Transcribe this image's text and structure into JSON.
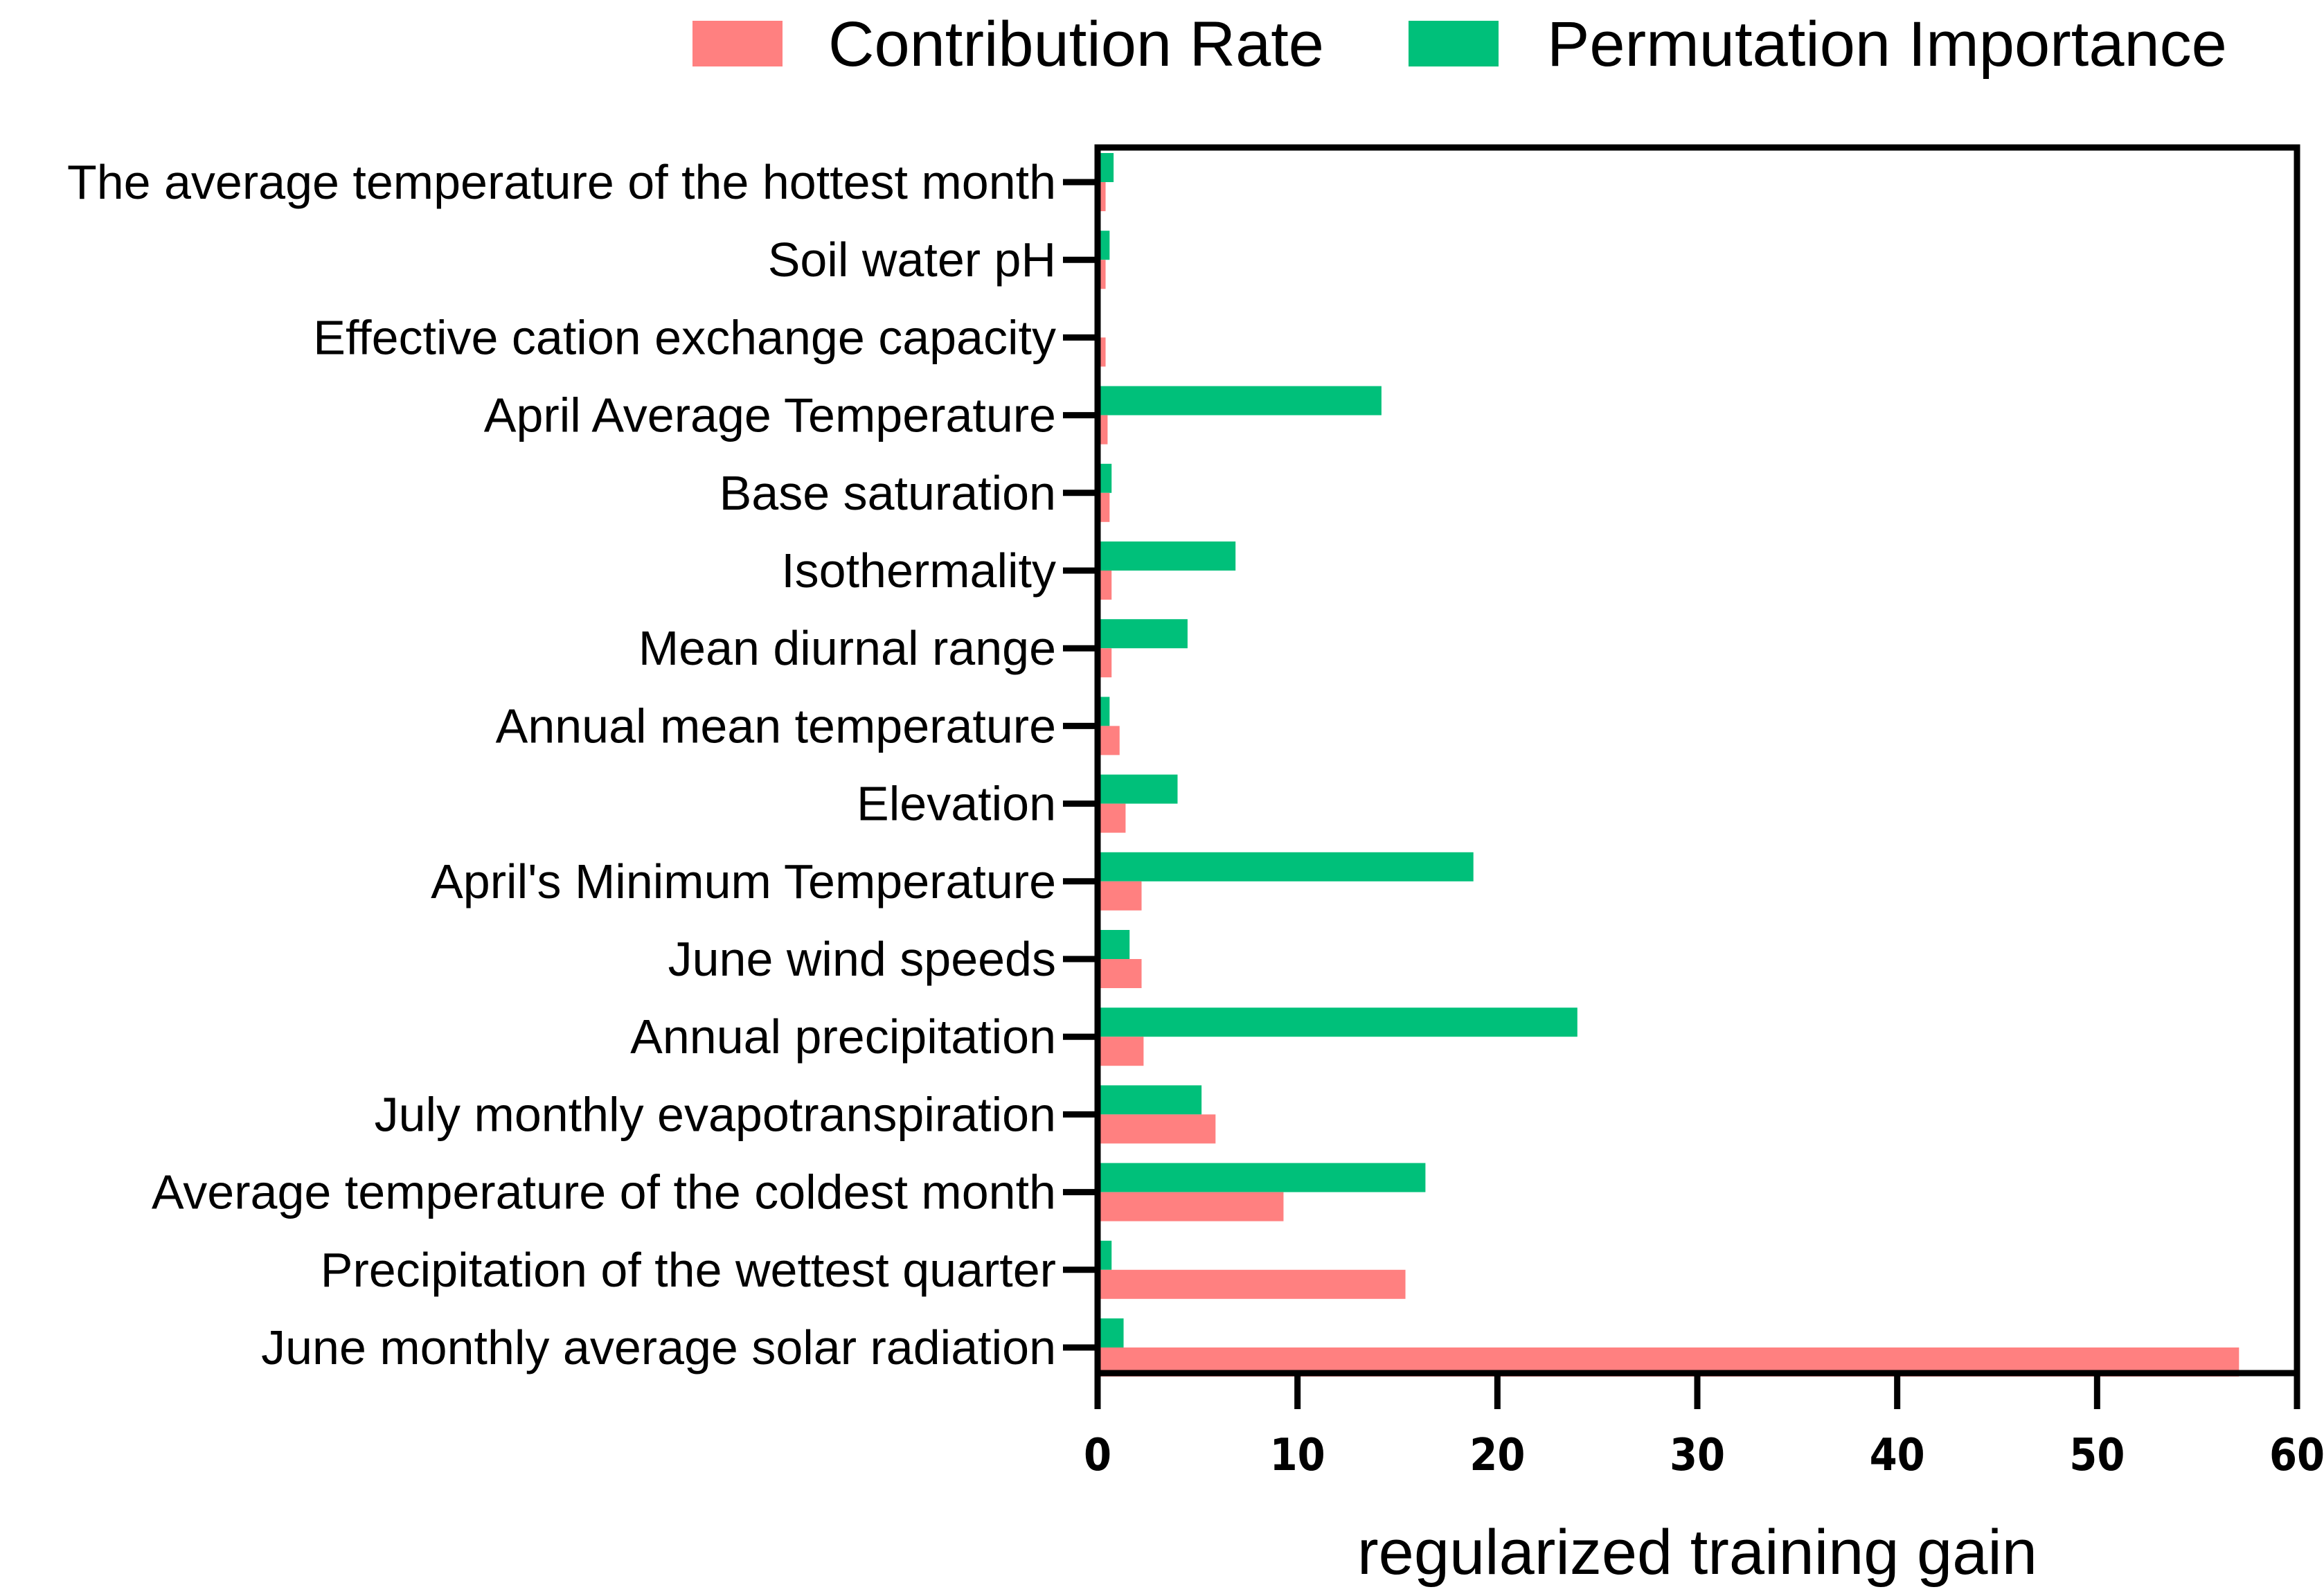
{
  "chart_data": {
    "type": "bar",
    "orientation": "horizontal",
    "title": "",
    "xlabel": "regularized training gain",
    "ylabel": "",
    "xlim": [
      0,
      60
    ],
    "xticks": [
      0,
      10,
      20,
      30,
      40,
      50,
      60
    ],
    "legend_position": "top-right",
    "categories": [
      "The average temperature of the hottest month",
      "Soil water pH",
      "Effective cation exchange capacity",
      "April Average Temperature",
      "Base saturation",
      "Isothermality",
      "Mean diurnal range",
      "Annual mean temperature",
      "Elevation",
      "April's Minimum Temperature",
      "June wind speeds",
      "Annual precipitation",
      "July monthly evapotranspiration",
      "Average temperature of the coldest month",
      "Precipitation of the wettest quarter",
      "June monthly average solar radiation"
    ],
    "series": [
      {
        "name": "Contribution Rate",
        "color": "#FF8080",
        "values": [
          0.4,
          0.4,
          0.4,
          0.5,
          0.6,
          0.7,
          0.7,
          1.1,
          1.4,
          2.2,
          2.2,
          2.3,
          5.9,
          9.3,
          15.4,
          57.1
        ]
      },
      {
        "name": "Permutation Importance",
        "color": "#00C07A",
        "values": [
          0.8,
          0.6,
          0.0,
          14.2,
          0.7,
          6.9,
          4.5,
          0.6,
          4.0,
          18.8,
          1.6,
          24.0,
          5.2,
          16.4,
          0.7,
          1.3
        ]
      }
    ]
  }
}
